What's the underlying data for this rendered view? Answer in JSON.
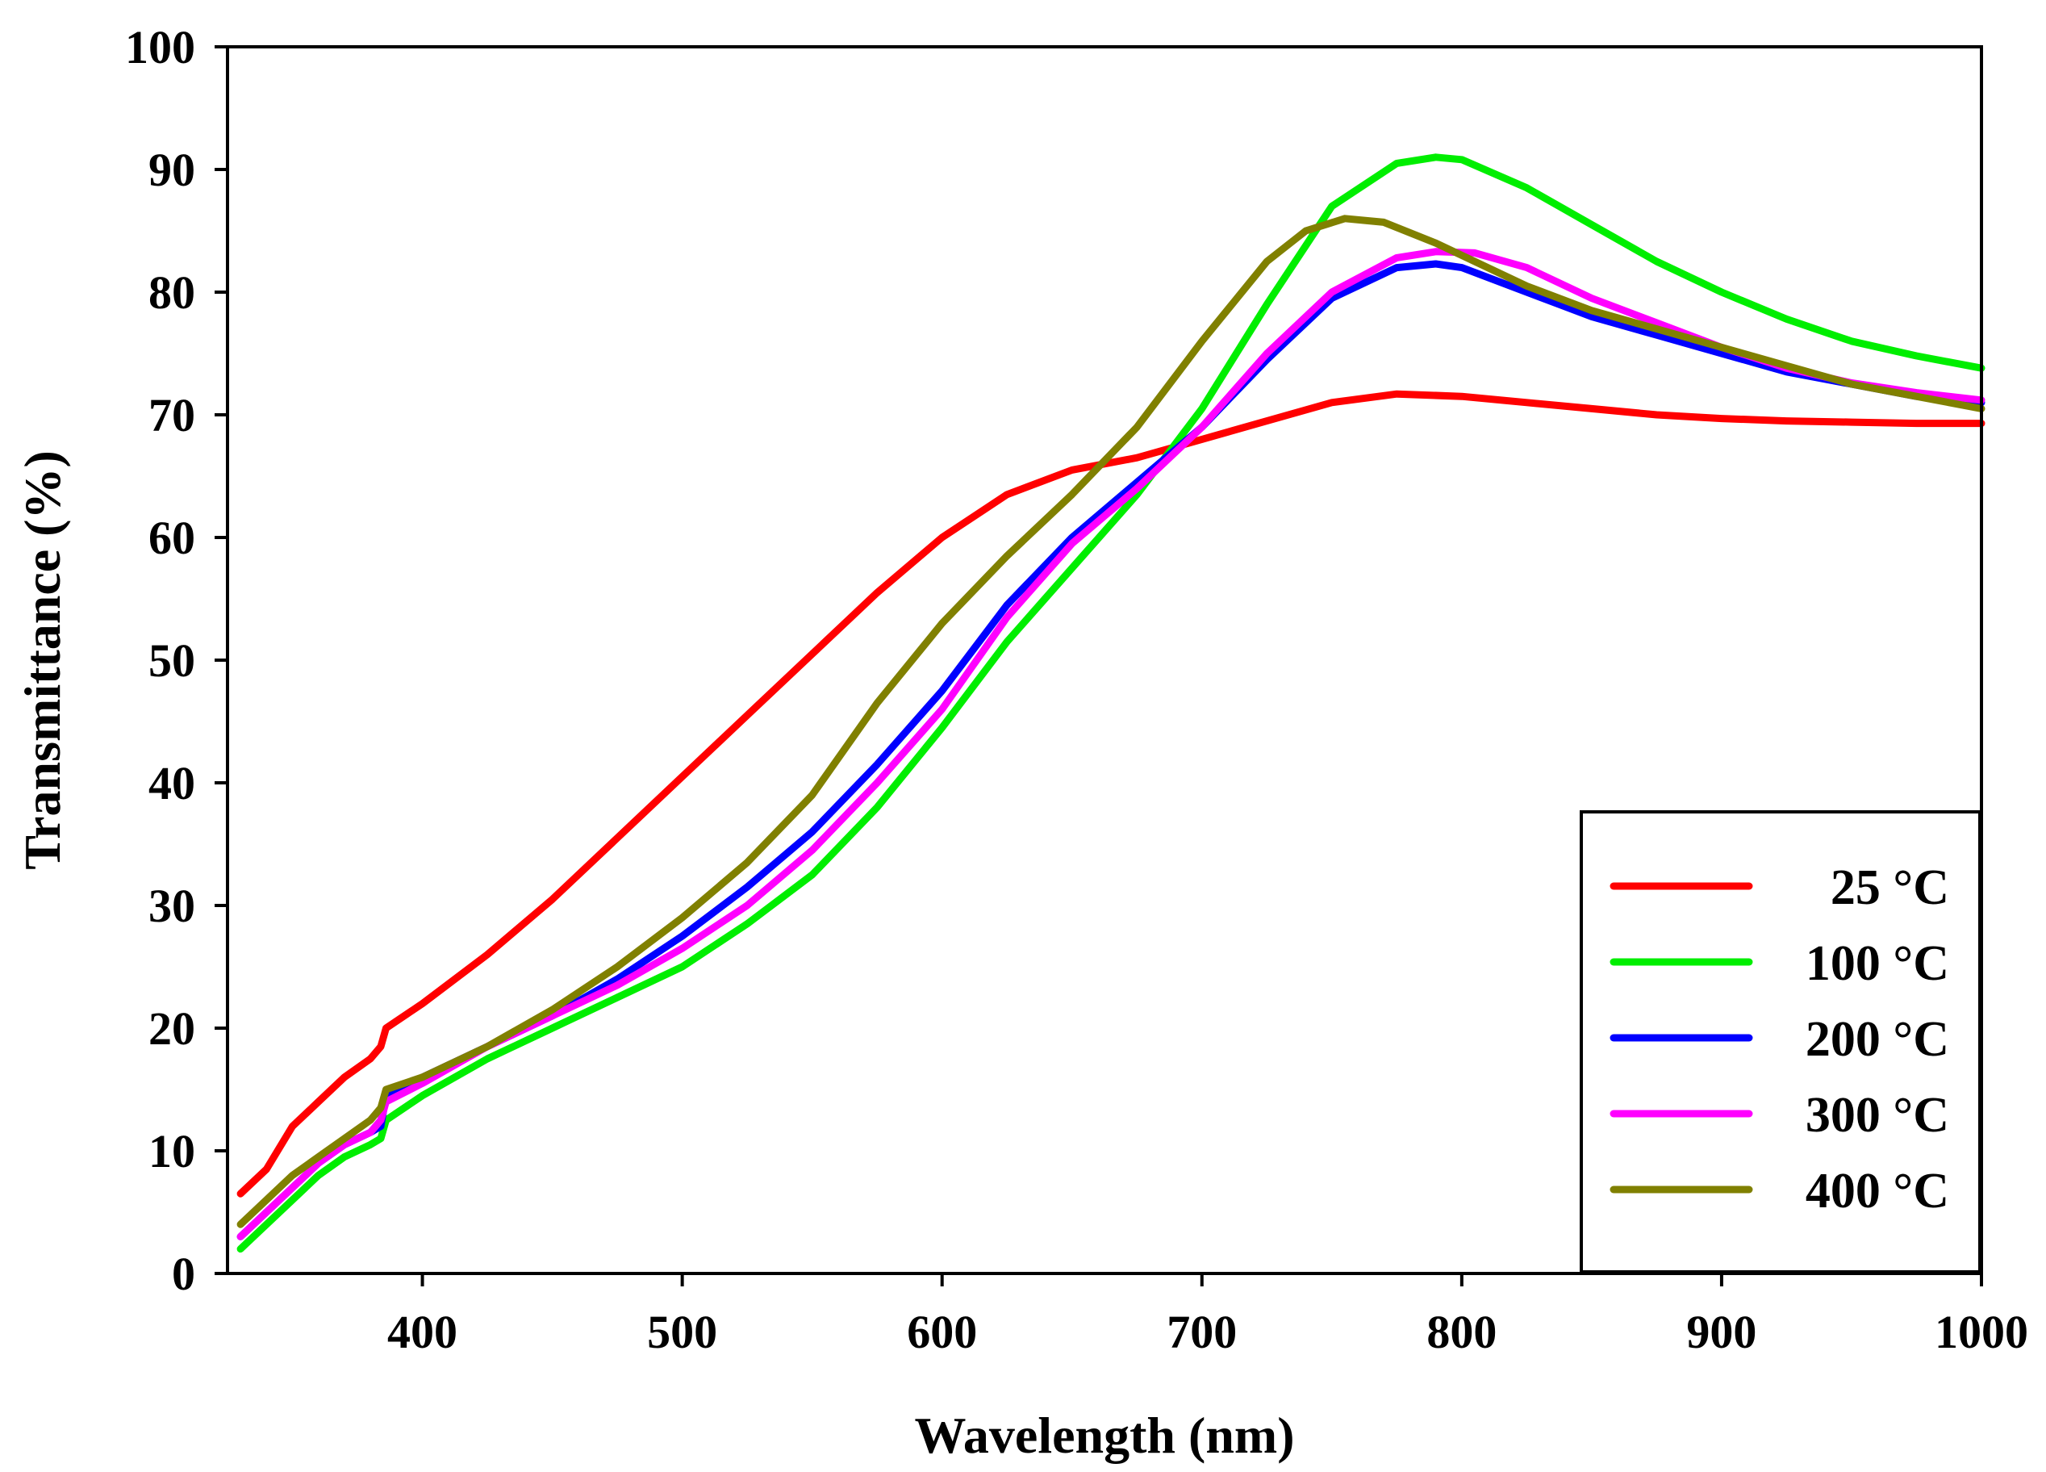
{
  "chart_data": {
    "type": "line",
    "title": "",
    "xlabel": "Wavelength (nm)",
    "ylabel": "Transmittance (%)",
    "xlim": [
      325,
      1000
    ],
    "ylim": [
      0,
      100
    ],
    "xticks": [
      400,
      500,
      600,
      700,
      800,
      900,
      1000
    ],
    "yticks": [
      0,
      10,
      20,
      30,
      40,
      50,
      60,
      70,
      80,
      90,
      100
    ],
    "grid": false,
    "legend_position": "bottom-right",
    "series": [
      {
        "name": "25 °C",
        "color": "#ff0000",
        "x": [
          330,
          340,
          350,
          360,
          370,
          380,
          384,
          386,
          400,
          425,
          450,
          475,
          500,
          525,
          550,
          575,
          600,
          625,
          650,
          675,
          700,
          725,
          750,
          775,
          800,
          825,
          850,
          875,
          900,
          925,
          950,
          975,
          1000
        ],
        "y": [
          6.5,
          8.5,
          12.0,
          14.0,
          16.0,
          17.5,
          18.5,
          20.0,
          22.0,
          26.0,
          30.5,
          35.5,
          40.5,
          45.5,
          50.5,
          55.5,
          60.0,
          63.5,
          65.5,
          66.5,
          68.0,
          69.5,
          71.0,
          71.7,
          71.5,
          71.0,
          70.5,
          70.0,
          69.7,
          69.5,
          69.4,
          69.3,
          69.3
        ]
      },
      {
        "name": "100 °C",
        "color": "#00ee00",
        "x": [
          330,
          340,
          350,
          360,
          370,
          380,
          384,
          386,
          400,
          425,
          450,
          475,
          500,
          525,
          550,
          575,
          600,
          625,
          650,
          675,
          700,
          725,
          750,
          775,
          790,
          800,
          825,
          850,
          875,
          900,
          925,
          950,
          975,
          1000
        ],
        "y": [
          2.0,
          4.0,
          6.0,
          8.0,
          9.5,
          10.5,
          11.0,
          12.5,
          14.5,
          17.5,
          20.0,
          22.5,
          25.0,
          28.5,
          32.5,
          38.0,
          44.5,
          51.5,
          57.5,
          63.5,
          70.5,
          79.0,
          87.0,
          90.5,
          91.0,
          90.8,
          88.5,
          85.5,
          82.5,
          80.0,
          77.8,
          76.0,
          74.8,
          73.8
        ]
      },
      {
        "name": "200 °C",
        "color": "#0000ff",
        "x": [
          330,
          340,
          350,
          360,
          370,
          380,
          384,
          386,
          400,
          425,
          450,
          475,
          500,
          525,
          550,
          575,
          600,
          625,
          650,
          675,
          700,
          725,
          750,
          775,
          790,
          800,
          825,
          850,
          875,
          900,
          925,
          950,
          975,
          1000
        ],
        "y": [
          3.0,
          5.0,
          7.0,
          9.0,
          10.5,
          11.5,
          12.0,
          14.5,
          16.0,
          18.5,
          21.0,
          24.0,
          27.5,
          31.5,
          36.0,
          41.5,
          47.5,
          54.5,
          60.0,
          64.5,
          69.0,
          74.5,
          79.5,
          82.0,
          82.3,
          82.0,
          80.0,
          78.0,
          76.5,
          75.0,
          73.5,
          72.5,
          71.5,
          71.0
        ]
      },
      {
        "name": "300 °C",
        "color": "#ff00ff",
        "x": [
          330,
          340,
          350,
          360,
          370,
          380,
          384,
          386,
          400,
          425,
          450,
          475,
          500,
          525,
          550,
          575,
          600,
          625,
          650,
          675,
          700,
          725,
          750,
          775,
          790,
          805,
          825,
          850,
          875,
          900,
          925,
          950,
          975,
          1000
        ],
        "y": [
          3.0,
          5.0,
          7.0,
          9.0,
          10.5,
          11.5,
          12.5,
          14.0,
          15.5,
          18.5,
          21.0,
          23.5,
          26.5,
          30.0,
          34.5,
          40.0,
          46.0,
          53.5,
          59.5,
          64.0,
          69.0,
          75.0,
          80.0,
          82.8,
          83.3,
          83.2,
          82.0,
          79.5,
          77.5,
          75.5,
          73.8,
          72.6,
          71.8,
          71.2
        ]
      },
      {
        "name": "400 °C",
        "color": "#808000",
        "x": [
          330,
          340,
          350,
          360,
          370,
          380,
          384,
          386,
          400,
          425,
          450,
          475,
          500,
          525,
          550,
          575,
          600,
          625,
          650,
          675,
          700,
          725,
          740,
          755,
          770,
          790,
          800,
          825,
          850,
          875,
          900,
          925,
          950,
          975,
          1000
        ],
        "y": [
          4.0,
          6.0,
          8.0,
          9.5,
          11.0,
          12.5,
          13.5,
          15.0,
          16.0,
          18.5,
          21.5,
          25.0,
          29.0,
          33.5,
          39.0,
          46.5,
          53.0,
          58.5,
          63.5,
          69.0,
          76.0,
          82.5,
          85.0,
          86.0,
          85.7,
          84.0,
          83.0,
          80.5,
          78.5,
          77.0,
          75.5,
          74.0,
          72.5,
          71.5,
          70.5
        ]
      }
    ]
  }
}
